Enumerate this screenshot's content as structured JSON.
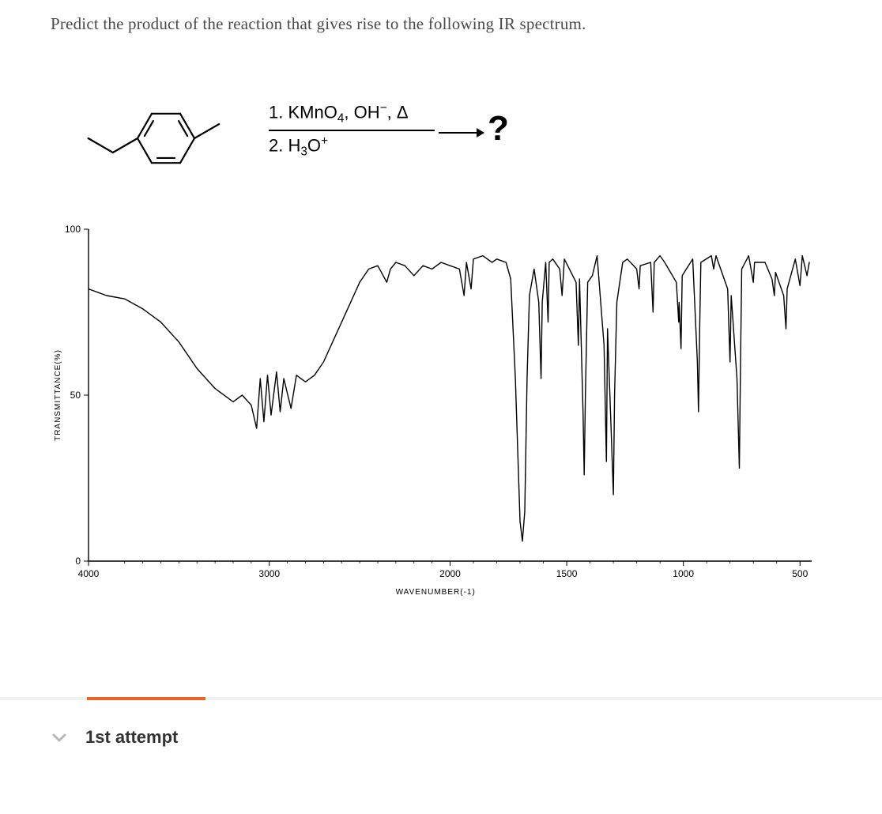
{
  "question": "Predict the product of the reaction that gives rise to the following IR spectrum.",
  "reaction": {
    "reagent_line1_html": "1. KMnO<sub>4</sub>, OH<sup>−</sup>, Δ",
    "reagent_line2_html": "2. H<sub>3</sub>O<sup>+</sup>",
    "product_symbol": "?"
  },
  "molecule": {
    "stroke": "#000000",
    "stroke_width": 2.2,
    "bond_len": 36
  },
  "spectrum": {
    "type": "line",
    "xlabel": "WAVENUMBER(-1)",
    "ylabel": "TRANSMITTANCE(%)",
    "label_fontsize": 10,
    "tick_fontsize": 12,
    "background_color": "#ffffff",
    "line_color": "#000000",
    "line_width": 1.4,
    "axis_color": "#000000",
    "xlim": [
      4000,
      450
    ],
    "ylim": [
      0,
      100
    ],
    "xticks": [
      4000,
      3000,
      2000,
      1500,
      1000,
      500
    ],
    "yticks": [
      0,
      50,
      100
    ],
    "ytick_labels": [
      "0",
      "50",
      "100"
    ],
    "x_scale_break": 2000,
    "data": [
      [
        4000,
        82
      ],
      [
        3900,
        80
      ],
      [
        3800,
        79
      ],
      [
        3700,
        76
      ],
      [
        3600,
        72
      ],
      [
        3500,
        66
      ],
      [
        3400,
        58
      ],
      [
        3300,
        52
      ],
      [
        3200,
        48
      ],
      [
        3150,
        50
      ],
      [
        3100,
        47
      ],
      [
        3070,
        40
      ],
      [
        3050,
        55
      ],
      [
        3030,
        42
      ],
      [
        3010,
        56
      ],
      [
        2990,
        44
      ],
      [
        2960,
        57
      ],
      [
        2940,
        45
      ],
      [
        2920,
        55
      ],
      [
        2880,
        46
      ],
      [
        2850,
        56
      ],
      [
        2800,
        54
      ],
      [
        2750,
        56
      ],
      [
        2700,
        60
      ],
      [
        2650,
        66
      ],
      [
        2600,
        72
      ],
      [
        2550,
        78
      ],
      [
        2500,
        84
      ],
      [
        2450,
        88
      ],
      [
        2400,
        89
      ],
      [
        2350,
        84
      ],
      [
        2330,
        88
      ],
      [
        2300,
        90
      ],
      [
        2250,
        89
      ],
      [
        2200,
        86
      ],
      [
        2150,
        89
      ],
      [
        2100,
        88
      ],
      [
        2050,
        90
      ],
      [
        2000,
        89
      ],
      [
        1960,
        88
      ],
      [
        1940,
        80
      ],
      [
        1930,
        90
      ],
      [
        1910,
        82
      ],
      [
        1900,
        91
      ],
      [
        1860,
        92
      ],
      [
        1820,
        90
      ],
      [
        1800,
        91
      ],
      [
        1760,
        90
      ],
      [
        1740,
        85
      ],
      [
        1720,
        55
      ],
      [
        1700,
        12
      ],
      [
        1690,
        6
      ],
      [
        1680,
        15
      ],
      [
        1670,
        55
      ],
      [
        1660,
        80
      ],
      [
        1640,
        88
      ],
      [
        1620,
        78
      ],
      [
        1610,
        55
      ],
      [
        1605,
        78
      ],
      [
        1590,
        90
      ],
      [
        1580,
        72
      ],
      [
        1575,
        90
      ],
      [
        1560,
        91
      ],
      [
        1530,
        88
      ],
      [
        1520,
        80
      ],
      [
        1510,
        91
      ],
      [
        1460,
        84
      ],
      [
        1450,
        65
      ],
      [
        1445,
        85
      ],
      [
        1430,
        45
      ],
      [
        1425,
        26
      ],
      [
        1420,
        50
      ],
      [
        1410,
        84
      ],
      [
        1390,
        86
      ],
      [
        1370,
        92
      ],
      [
        1340,
        65
      ],
      [
        1330,
        30
      ],
      [
        1325,
        70
      ],
      [
        1310,
        40
      ],
      [
        1300,
        20
      ],
      [
        1295,
        50
      ],
      [
        1285,
        78
      ],
      [
        1260,
        90
      ],
      [
        1240,
        91
      ],
      [
        1200,
        88
      ],
      [
        1190,
        82
      ],
      [
        1185,
        89
      ],
      [
        1140,
        90
      ],
      [
        1130,
        75
      ],
      [
        1125,
        90
      ],
      [
        1100,
        92
      ],
      [
        1080,
        90
      ],
      [
        1030,
        84
      ],
      [
        1020,
        72
      ],
      [
        1018,
        78
      ],
      [
        1010,
        64
      ],
      [
        1005,
        86
      ],
      [
        960,
        91
      ],
      [
        940,
        60
      ],
      [
        935,
        45
      ],
      [
        930,
        70
      ],
      [
        925,
        90
      ],
      [
        880,
        92
      ],
      [
        870,
        88
      ],
      [
        860,
        92
      ],
      [
        810,
        82
      ],
      [
        800,
        60
      ],
      [
        795,
        80
      ],
      [
        770,
        55
      ],
      [
        760,
        28
      ],
      [
        755,
        60
      ],
      [
        750,
        88
      ],
      [
        720,
        92
      ],
      [
        700,
        84
      ],
      [
        695,
        90
      ],
      [
        650,
        90
      ],
      [
        620,
        85
      ],
      [
        610,
        80
      ],
      [
        605,
        87
      ],
      [
        570,
        80
      ],
      [
        560,
        70
      ],
      [
        555,
        82
      ],
      [
        520,
        91
      ],
      [
        500,
        83
      ],
      [
        490,
        92
      ],
      [
        470,
        86
      ],
      [
        460,
        90
      ]
    ]
  },
  "progress": {
    "bg_color": "#f0f0f0",
    "fill_color": "#e8652c",
    "fill_start_pct": 10,
    "fill_width_pct": 14
  },
  "attempt": {
    "label": "1st attempt",
    "chevron_color": "#b8b8b8"
  }
}
